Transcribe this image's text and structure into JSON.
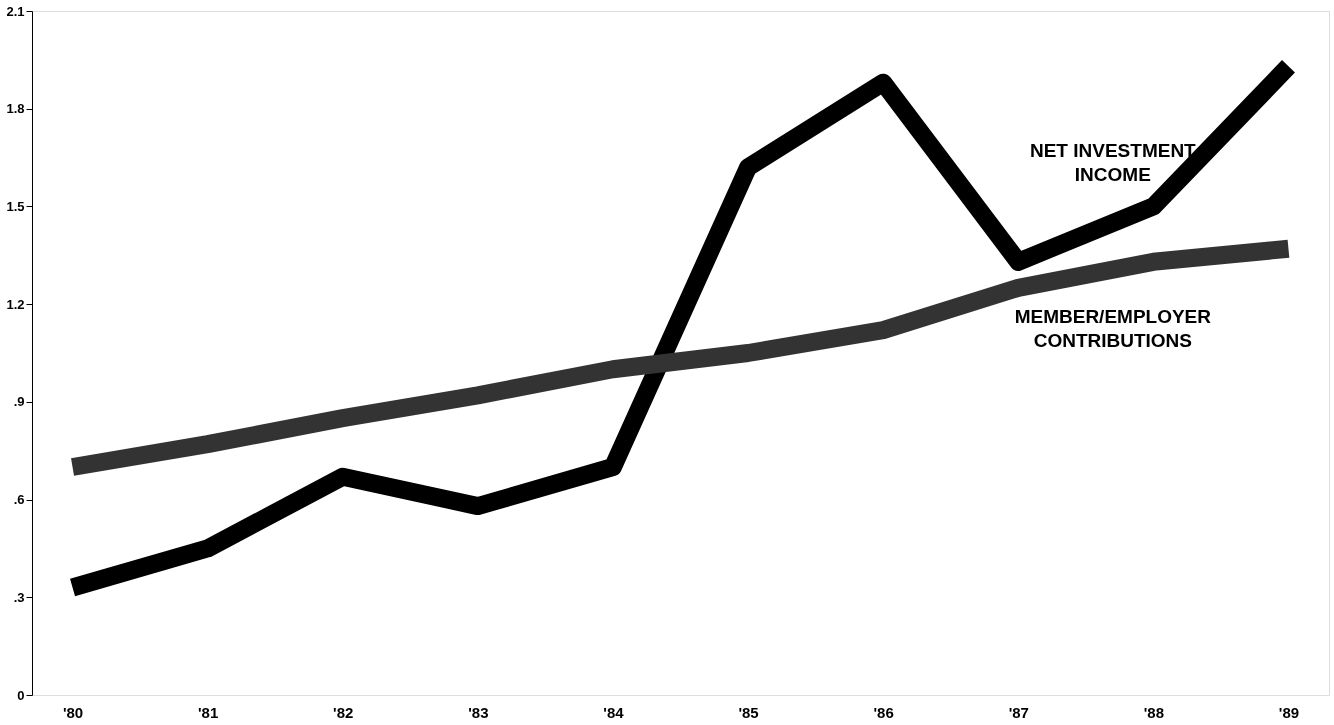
{
  "chart_data": {
    "type": "line",
    "categories": [
      "'80",
      "'81",
      "'82",
      "'83",
      "'84",
      "'85",
      "'86",
      "'87",
      "'88",
      "'89"
    ],
    "series": [
      {
        "name": "NET INVESTMENT INCOME",
        "color": "#000000",
        "values": [
          0.33,
          0.45,
          0.67,
          0.58,
          0.7,
          1.62,
          1.88,
          1.33,
          1.5,
          1.93
        ]
      },
      {
        "name": "MEMBER/EMPLOYER CONTRIBUTIONS",
        "color": "#333333",
        "values": [
          0.7,
          0.77,
          0.85,
          0.92,
          1.0,
          1.05,
          1.12,
          1.25,
          1.33,
          1.37
        ]
      }
    ],
    "ylim": [
      0,
      2.1
    ],
    "yticks": [
      {
        "value": 0,
        "label": "0"
      },
      {
        "value": 0.3,
        "label": ".3"
      },
      {
        "value": 0.6,
        "label": ".6"
      },
      {
        "value": 0.9,
        "label": ".9"
      },
      1.2,
      1.5,
      1.8,
      2.1
    ],
    "grid": false,
    "marker": "none",
    "line_style": "solid"
  }
}
